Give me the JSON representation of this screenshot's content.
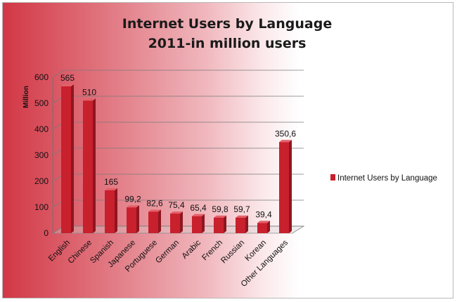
{
  "colors": {
    "bar": "#c8202d",
    "bar_side": "#8e1620",
    "bar_top": "#e5606a"
  },
  "chart_data": {
    "type": "bar",
    "title_lines": [
      "Internet Users by Language",
      "2011-in million users"
    ],
    "ylabel": "Million",
    "xlabel": "",
    "ylim": [
      0,
      600
    ],
    "yticks": [
      "0",
      "100",
      "200",
      "300",
      "400",
      "500",
      "600"
    ],
    "grid": true,
    "legend_position": "right",
    "categories": [
      "English",
      "Chinese",
      "Spanish",
      "Japanese",
      "Portuguese",
      "German",
      "Arabic",
      "French",
      "Russian",
      "Korean",
      "Other Languages"
    ],
    "series": [
      {
        "name": "Internet Users by Language",
        "values": [
          565,
          510,
          165,
          99.2,
          82.6,
          75.4,
          65.4,
          59.8,
          59.7,
          39.4,
          350.6
        ],
        "labels": [
          "565",
          "510",
          "165",
          "99,2",
          "82,6",
          "75,4",
          "65,4",
          "59,8",
          "59,7",
          "39,4",
          "350,6"
        ]
      }
    ]
  }
}
